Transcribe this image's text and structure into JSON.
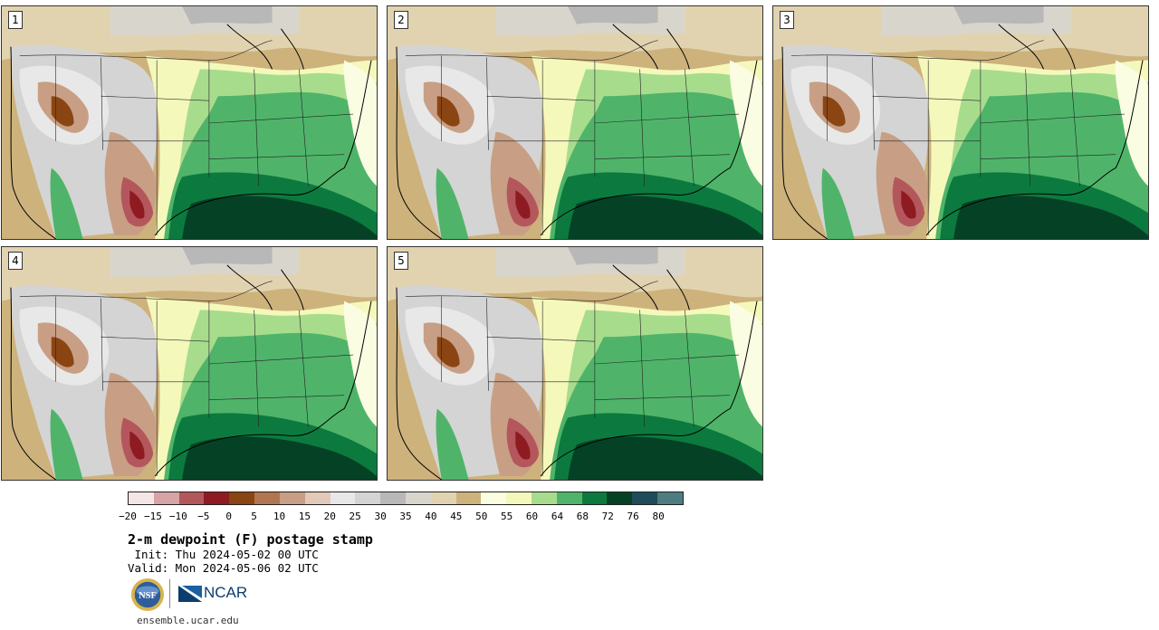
{
  "panels": [
    {
      "id": "1",
      "label": "1"
    },
    {
      "id": "2",
      "label": "2"
    },
    {
      "id": "3",
      "label": "3"
    },
    {
      "id": "4",
      "label": "4"
    },
    {
      "id": "5",
      "label": "5"
    }
  ],
  "colorbar": {
    "colors": [
      "#f4e6e6",
      "#d6a3a6",
      "#b4575c",
      "#8e1a22",
      "#8a4513",
      "#b07652",
      "#c89f85",
      "#e2c9b9",
      "#e8e8e8",
      "#d4d4d4",
      "#b8b8b8",
      "#d8d6cc",
      "#e2d3b0",
      "#cdb27c",
      "#fbfde2",
      "#f5f8bb",
      "#a8dc8d",
      "#4fb46a",
      "#0c7a3e",
      "#054225",
      "#1f4c5a",
      "#4f7c80"
    ],
    "tick_labels": [
      "−20",
      "−15",
      "−10",
      "−5",
      "0",
      "5",
      "10",
      "15",
      "20",
      "25",
      "30",
      "35",
      "40",
      "45",
      "50",
      "55",
      "60",
      "64",
      "68",
      "72",
      "76",
      "80"
    ]
  },
  "title": "2-m dewpoint (F) postage stamp",
  "init_line": " Init: Thu 2024-05-02 00 UTC",
  "valid_line": "Valid: Mon 2024-05-06 02 UTC",
  "logos": {
    "nsf": "NSF",
    "ncar": "NCAR"
  },
  "website": "ensemble.ucar.edu"
}
